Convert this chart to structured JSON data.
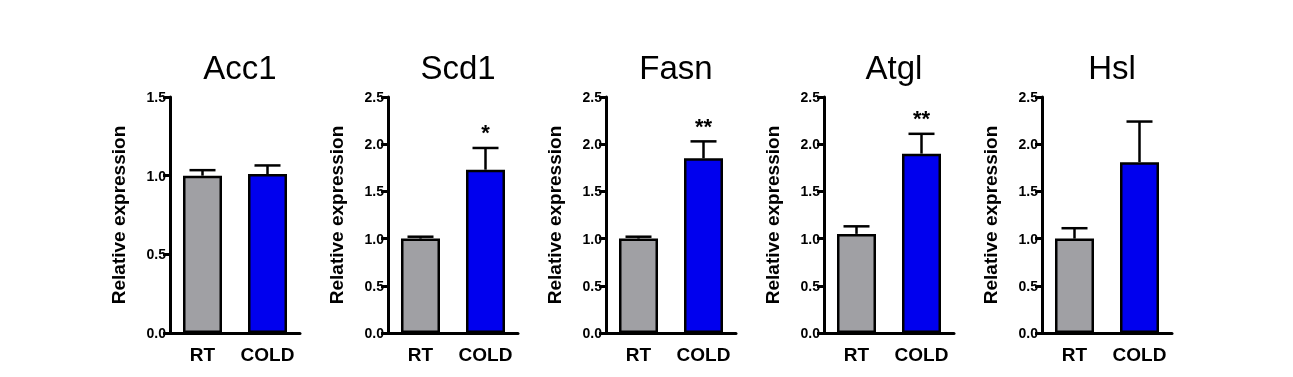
{
  "chart_data": [
    {
      "type": "bar",
      "title": "Acc1",
      "ylabel": "Relative expression",
      "categories": [
        "RT",
        "COLD"
      ],
      "values": [
        1.0,
        1.01
      ],
      "colors": [
        "#a0a0a4",
        "#0000ee"
      ],
      "errors": [
        [
          1.0,
          1.035
        ],
        [
          1.01,
          1.065
        ]
      ],
      "ylim": [
        0,
        1.5
      ],
      "yticks": [
        {
          "value": 0,
          "label": "0.0"
        },
        {
          "value": 0.5,
          "label": "0.5"
        },
        {
          "value": 1,
          "label": "1.0"
        },
        {
          "value": 1.5,
          "label": "1.5"
        }
      ],
      "grid": false
    },
    {
      "type": "bar",
      "title": "Scd1",
      "ylabel": "Relative expression",
      "categories": [
        "RT",
        "COLD"
      ],
      "values": [
        1.0,
        1.73
      ],
      "colors": [
        "#a0a0a4",
        "#0000ee"
      ],
      "errors": [
        [
          1.0,
          1.02
        ],
        [
          1.73,
          1.96
        ]
      ],
      "ylim": [
        0,
        2.5
      ],
      "yticks": [
        {
          "value": 0,
          "label": "0.0"
        },
        {
          "value": 0.5,
          "label": "0.5"
        },
        {
          "value": 1,
          "label": "1.0"
        },
        {
          "value": 1.5,
          "label": "1.5"
        },
        {
          "value": 2,
          "label": "2.0"
        },
        {
          "value": 2.5,
          "label": "2.5"
        }
      ],
      "annotations": [
        {
          "text": "*",
          "x": "COLD",
          "y": 1.96
        }
      ],
      "grid": false
    },
    {
      "type": "bar",
      "title": "Fasn",
      "ylabel": "Relative expression",
      "categories": [
        "RT",
        "COLD"
      ],
      "values": [
        1.0,
        1.85
      ],
      "colors": [
        "#a0a0a4",
        "#0000ee"
      ],
      "errors": [
        [
          1.0,
          1.02
        ],
        [
          1.85,
          2.03
        ]
      ],
      "ylim": [
        0,
        2.5
      ],
      "yticks": [
        {
          "value": 0,
          "label": "0.0"
        },
        {
          "value": 0.5,
          "label": "0.5"
        },
        {
          "value": 1,
          "label": "1.0"
        },
        {
          "value": 1.5,
          "label": "1.5"
        },
        {
          "value": 2,
          "label": "2.0"
        },
        {
          "value": 2.5,
          "label": "2.5"
        }
      ],
      "annotations": [
        {
          "text": "**",
          "x": "COLD",
          "y": 2.03
        }
      ],
      "grid": false
    },
    {
      "type": "bar",
      "title": "Atgl",
      "ylabel": "Relative expression",
      "categories": [
        "RT",
        "COLD"
      ],
      "values": [
        1.05,
        1.9
      ],
      "colors": [
        "#a0a0a4",
        "#0000ee"
      ],
      "errors": [
        [
          1.05,
          1.13
        ],
        [
          1.9,
          2.11
        ]
      ],
      "ylim": [
        0,
        2.5
      ],
      "yticks": [
        {
          "value": 0,
          "label": "0.0"
        },
        {
          "value": 0.5,
          "label": "0.5"
        },
        {
          "value": 1,
          "label": "1.0"
        },
        {
          "value": 1.5,
          "label": "1.5"
        },
        {
          "value": 2,
          "label": "2.0"
        },
        {
          "value": 2.5,
          "label": "2.5"
        }
      ],
      "annotations": [
        {
          "text": "**",
          "x": "COLD",
          "y": 2.11
        }
      ],
      "grid": false
    },
    {
      "type": "bar",
      "title": "Hsl",
      "ylabel": "Relative expression",
      "categories": [
        "RT",
        "COLD"
      ],
      "values": [
        1.0,
        1.81
      ],
      "colors": [
        "#a0a0a4",
        "#0000ee"
      ],
      "errors": [
        [
          1.0,
          1.11
        ],
        [
          1.81,
          2.24
        ]
      ],
      "ylim": [
        0,
        2.5
      ],
      "yticks": [
        {
          "value": 0,
          "label": "0.0"
        },
        {
          "value": 0.5,
          "label": "0.5"
        },
        {
          "value": 1,
          "label": "1.0"
        },
        {
          "value": 1.5,
          "label": "1.5"
        },
        {
          "value": 2,
          "label": "2.0"
        },
        {
          "value": 2.5,
          "label": "2.5"
        }
      ],
      "grid": false
    }
  ]
}
